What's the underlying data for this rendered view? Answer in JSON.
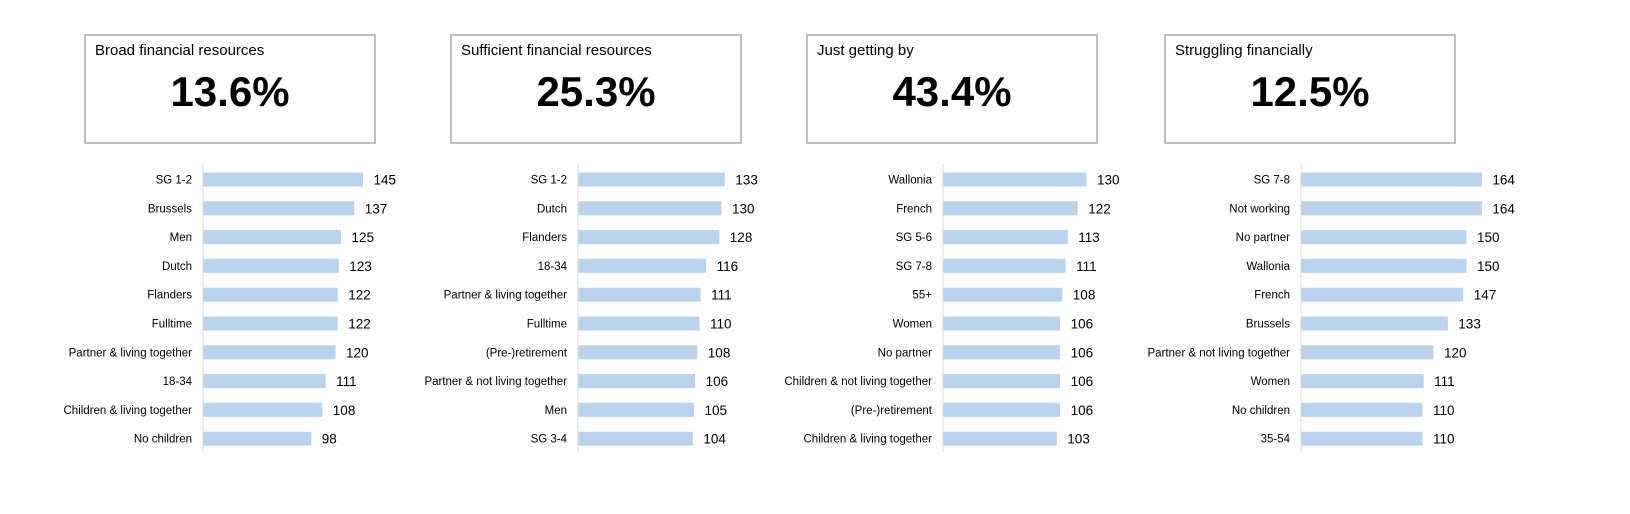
{
  "bar_color": "#b9d3ee",
  "axis_color": "#d9d9d9",
  "chart_data": [
    {
      "type": "bar",
      "orientation": "horizontal",
      "title": "Broad financial resources",
      "headline_value": "13.6%",
      "categories": [
        "SG 1-2",
        "Brussels",
        "Men",
        "Dutch",
        "Flanders",
        "Fulltime",
        "Partner & living together",
        "18-34",
        "Children & living together",
        "No children"
      ],
      "values": [
        145,
        137,
        125,
        123,
        122,
        122,
        120,
        111,
        108,
        98
      ]
    },
    {
      "type": "bar",
      "orientation": "horizontal",
      "title": "Sufficient financial resources",
      "headline_value": "25.3%",
      "categories": [
        "SG 1-2",
        "Dutch",
        "Flanders",
        "18-34",
        "Partner & living together",
        "Fulltime",
        "(Pre-)retirement",
        "Partner & not living together",
        "Men",
        "SG 3-4"
      ],
      "values": [
        133,
        130,
        128,
        116,
        111,
        110,
        108,
        106,
        105,
        104
      ]
    },
    {
      "type": "bar",
      "orientation": "horizontal",
      "title": "Just getting by",
      "headline_value": "43.4%",
      "categories": [
        "Wallonia",
        "French",
        "SG 5-6",
        "SG 7-8",
        "55+",
        "Women",
        "No partner",
        "Children & not living together",
        "(Pre-)retirement",
        "Children & living together"
      ],
      "values": [
        130,
        122,
        113,
        111,
        108,
        106,
        106,
        106,
        106,
        103
      ]
    },
    {
      "type": "bar",
      "orientation": "horizontal",
      "title": "Struggling financially",
      "headline_value": "12.5%",
      "categories": [
        "SG 7-8",
        "Not working",
        "No partner",
        "Wallonia",
        "French",
        "Brussels",
        "Partner & not living together",
        "Women",
        "No children",
        "35-54"
      ],
      "values": [
        164,
        164,
        150,
        150,
        147,
        133,
        120,
        111,
        110,
        110
      ]
    }
  ]
}
